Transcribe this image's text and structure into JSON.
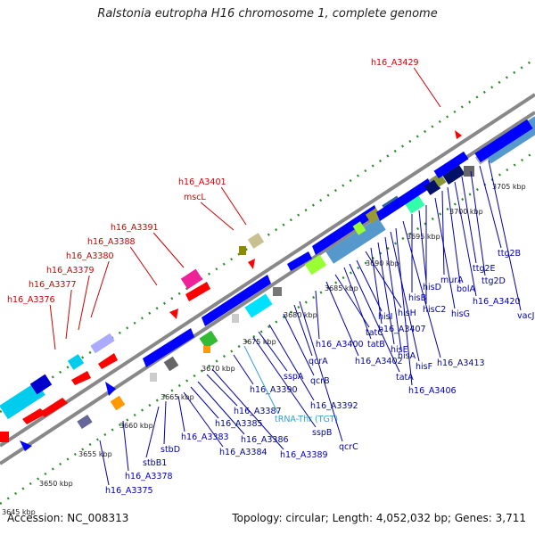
{
  "title": "Ralstonia eutropha H16 chromosome 1, complete genome",
  "footer": {
    "accession": "Accession: NC_008313",
    "summary": "Topology: circular; Length: 4,052,032 bp; Genes: 3,711"
  },
  "colors": {
    "forward_label": "#cc0000",
    "reverse_label": "#0000aa",
    "rna_label": "#33a0cc",
    "forward_gene": "#ff0000",
    "reverse_gene": "#0000ff",
    "axis": "#888888",
    "dots": "#2e8b2e"
  },
  "ticks": [
    "3645 kbp",
    "3650 kbp",
    "3655 kbp",
    "3660 kbp",
    "3665 kbp",
    "3670 kbp",
    "3675 kbp",
    "3680 kbp",
    "3685 kbp",
    "3690 kbp",
    "3695 kbp",
    "3700 kbp",
    "3705 kbp"
  ],
  "top_labels": [
    "h16_A3376",
    "h16_A3377",
    "h16_A3379",
    "h16_A3380",
    "h16_A3388",
    "h16_A3391",
    "mscL",
    "h16_A3401",
    "h16_A3429"
  ],
  "bottom_labels": [
    "h16_A3375",
    "h16_A3378",
    "stbB1",
    "stbD",
    "h16_A3383",
    "h16_A3384",
    "h16_A3385",
    "h16_A3386",
    "h16_A3387",
    "h16_A3389",
    "h16_A3390",
    "tRNA-Thr (TGT)",
    "sspB",
    "sspA",
    "h16_A3392",
    "qcrB",
    "qcrA",
    "qcrC",
    "h16_A3400",
    "h16_A3402",
    "tatC",
    "tatB",
    "tatA",
    "hisI",
    "hisH",
    "h16_A3407",
    "hisE",
    "hisA",
    "hisF",
    "h16_A3406",
    "h16_A3413",
    "hisB",
    "hisD",
    "hisC2",
    "hisG",
    "murA",
    "bolA",
    "h16_A3420",
    "ttg2E",
    "ttg2D",
    "ttg2B",
    "vacJ"
  ]
}
